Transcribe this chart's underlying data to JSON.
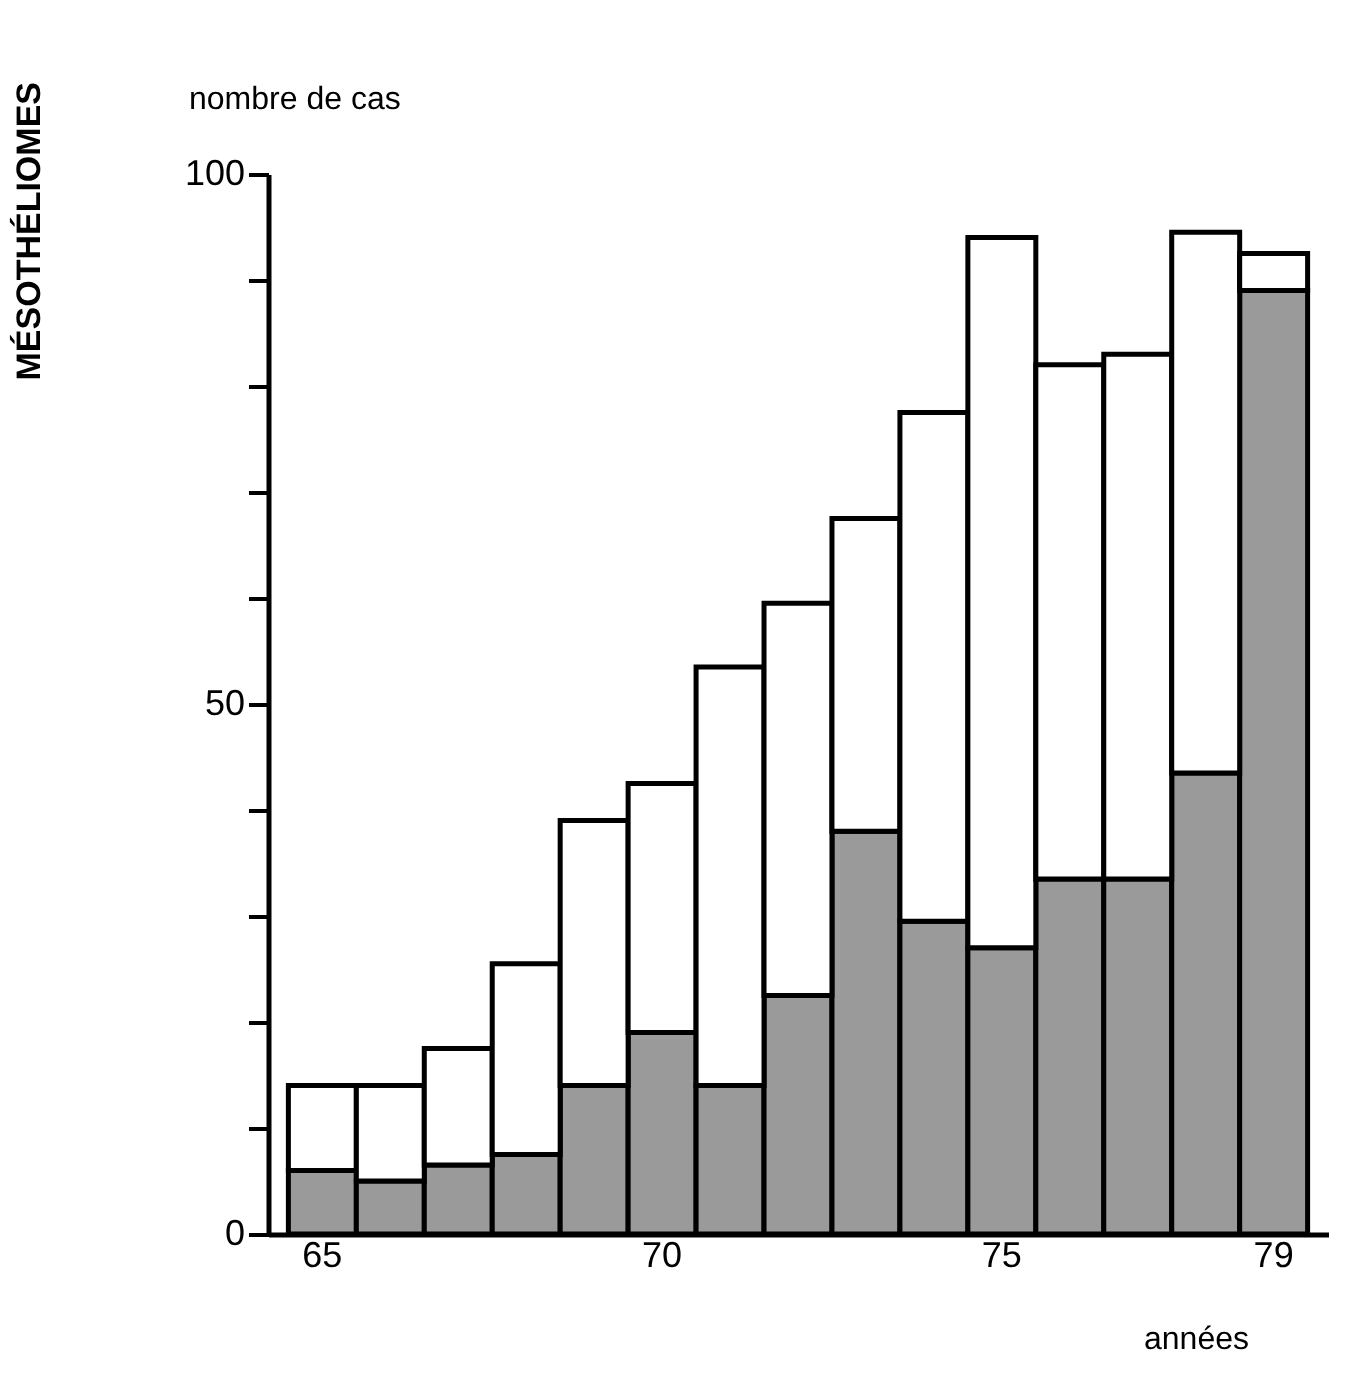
{
  "chart_data": {
    "type": "bar",
    "stacked": true,
    "title": "MÉSOTHÉLIOMES",
    "ylabel": "nombre de cas",
    "xlabel": "années",
    "categories": [
      "65",
      null,
      null,
      null,
      null,
      "70",
      null,
      null,
      null,
      null,
      "75",
      null,
      null,
      null,
      "79"
    ],
    "series": [
      {
        "color": "#9a9a9a",
        "values": [
          6,
          5,
          6.5,
          7.5,
          14,
          19,
          14,
          22.5,
          38,
          29.5,
          27,
          33.5,
          33.5,
          43.5,
          89
        ]
      },
      {
        "color": "#ffffff",
        "values": [
          8,
          9,
          11,
          18,
          25,
          23.5,
          39.5,
          37,
          29.5,
          48,
          67,
          48.5,
          49.5,
          51,
          3.5
        ]
      }
    ],
    "ylim": [
      0,
      100
    ],
    "yticks": [
      0,
      {
        "value": 10,
        "label": null
      },
      {
        "value": 20,
        "label": null
      },
      {
        "value": 30,
        "label": null
      },
      {
        "value": 40,
        "label": null
      },
      50,
      {
        "value": 60,
        "label": null
      },
      {
        "value": 70,
        "label": null
      },
      {
        "value": 80,
        "label": null
      },
      {
        "value": 90,
        "label": null
      },
      100
    ],
    "grid": false,
    "legend": false
  }
}
